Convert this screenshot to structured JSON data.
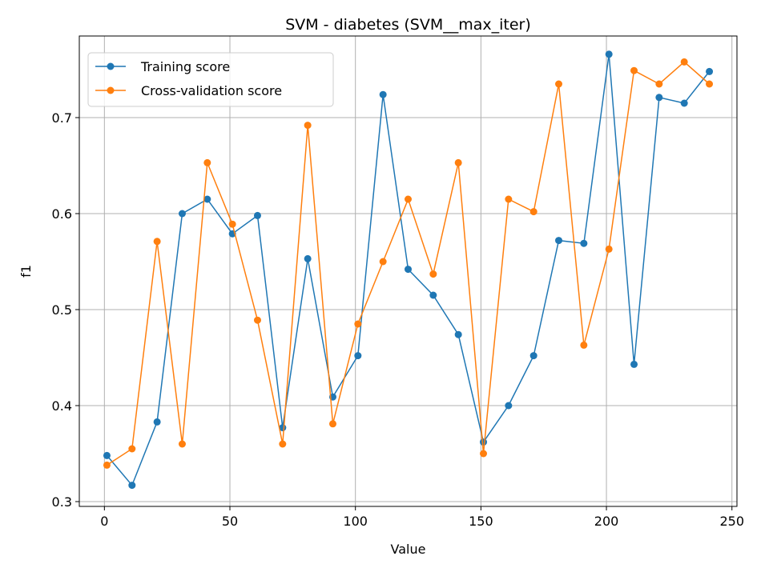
{
  "chart_data": {
    "type": "line",
    "title": "SVM - diabetes (SVM__max_iter)",
    "xlabel": "Value",
    "ylabel": "f1",
    "xlim": [
      -10,
      252
    ],
    "ylim": [
      0.295,
      0.785
    ],
    "xticks": [
      0,
      50,
      100,
      150,
      200,
      250
    ],
    "yticks": [
      0.3,
      0.4,
      0.5,
      0.6,
      0.7
    ],
    "grid": true,
    "legend_position": "top-left",
    "x": [
      1,
      11,
      21,
      31,
      41,
      51,
      61,
      71,
      81,
      91,
      101,
      111,
      121,
      131,
      141,
      151,
      161,
      171,
      181,
      191,
      201,
      211,
      221,
      231,
      241
    ],
    "series": [
      {
        "name": "Training score",
        "color": "#1f77b4",
        "values": [
          0.348,
          0.317,
          0.383,
          0.6,
          0.615,
          0.579,
          0.598,
          0.377,
          0.553,
          0.409,
          0.452,
          0.724,
          0.542,
          0.515,
          0.474,
          0.362,
          0.4,
          0.452,
          0.572,
          0.569,
          0.766,
          0.443,
          0.721,
          0.715,
          0.748
        ]
      },
      {
        "name": "Cross-validation score",
        "color": "#ff7f0e",
        "values": [
          0.338,
          0.355,
          0.571,
          0.36,
          0.653,
          0.589,
          0.489,
          0.36,
          0.692,
          0.381,
          0.485,
          0.55,
          0.615,
          0.537,
          0.653,
          0.35,
          0.615,
          0.602,
          0.735,
          0.463,
          0.563,
          0.749,
          0.735,
          0.758,
          0.735
        ]
      }
    ]
  }
}
